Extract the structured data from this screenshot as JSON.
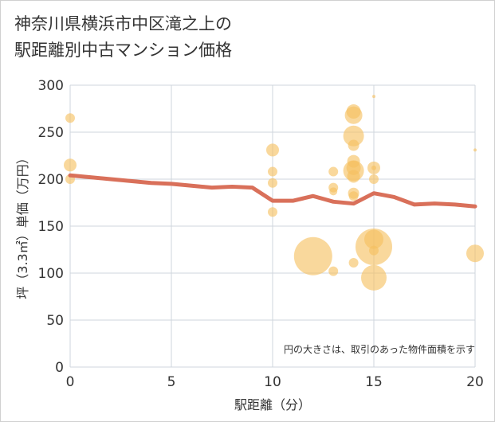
{
  "chart_data": {
    "type": "scatter",
    "title_lines": [
      "神奈川県横浜市中区滝之上の",
      "駅距離別中古マンション価格"
    ],
    "xlabel": "駅距離（分）",
    "ylabel": "坪（3.3㎡）単価（万円）",
    "xlim": [
      0,
      20
    ],
    "ylim": [
      0,
      300
    ],
    "x_ticks": [
      0,
      5,
      10,
      15,
      20
    ],
    "y_ticks": [
      0,
      50,
      100,
      150,
      200,
      250,
      300
    ],
    "x_tick_labels": [
      "0",
      "5",
      "10",
      "15",
      "20"
    ],
    "y_tick_labels": [
      "0",
      "50",
      "100",
      "150",
      "200",
      "250",
      "300"
    ],
    "annotation": "円の大きさは、取引のあった物件面積を示す",
    "bubble_color": "#f5c060",
    "line_color": "#d9705a",
    "bubbles": [
      {
        "x": 0,
        "y": 265,
        "s": 6
      },
      {
        "x": 0,
        "y": 215,
        "s": 8
      },
      {
        "x": 0,
        "y": 200,
        "s": 6
      },
      {
        "x": 10,
        "y": 231,
        "s": 8
      },
      {
        "x": 10,
        "y": 208,
        "s": 6
      },
      {
        "x": 10,
        "y": 196,
        "s": 6
      },
      {
        "x": 10,
        "y": 165,
        "s": 6
      },
      {
        "x": 12,
        "y": 118,
        "s": 24
      },
      {
        "x": 13,
        "y": 208,
        "s": 6
      },
      {
        "x": 13,
        "y": 191,
        "s": 6
      },
      {
        "x": 13,
        "y": 187,
        "s": 5
      },
      {
        "x": 13,
        "y": 102,
        "s": 6
      },
      {
        "x": 14,
        "y": 272,
        "s": 9
      },
      {
        "x": 14,
        "y": 268,
        "s": 11
      },
      {
        "x": 14,
        "y": 246,
        "s": 13
      },
      {
        "x": 14,
        "y": 236,
        "s": 7
      },
      {
        "x": 14,
        "y": 219,
        "s": 8
      },
      {
        "x": 14,
        "y": 212,
        "s": 9
      },
      {
        "x": 14,
        "y": 209,
        "s": 13
      },
      {
        "x": 14,
        "y": 203,
        "s": 8
      },
      {
        "x": 14,
        "y": 185,
        "s": 7
      },
      {
        "x": 14,
        "y": 182,
        "s": 6
      },
      {
        "x": 14,
        "y": 111,
        "s": 6
      },
      {
        "x": 15,
        "y": 288,
        "s": 2
      },
      {
        "x": 15,
        "y": 212,
        "s": 8
      },
      {
        "x": 15,
        "y": 212,
        "s": 3
      },
      {
        "x": 15,
        "y": 200,
        "s": 6
      },
      {
        "x": 15,
        "y": 136,
        "s": 12
      },
      {
        "x": 15,
        "y": 128,
        "s": 23
      },
      {
        "x": 15,
        "y": 124,
        "s": 6
      },
      {
        "x": 15,
        "y": 95,
        "s": 16
      },
      {
        "x": 20,
        "y": 231,
        "s": 2
      },
      {
        "x": 20,
        "y": 121,
        "s": 11
      }
    ],
    "trend_line": {
      "x": [
        0,
        1,
        2,
        3,
        4,
        5,
        6,
        7,
        8,
        9,
        10,
        11,
        12,
        13,
        14,
        15,
        16,
        17,
        18,
        19,
        20
      ],
      "y": [
        204,
        202,
        200,
        198,
        196,
        195,
        193,
        191,
        192,
        191,
        177,
        177,
        182,
        176,
        174,
        185,
        181,
        173,
        174,
        173,
        171
      ]
    }
  }
}
